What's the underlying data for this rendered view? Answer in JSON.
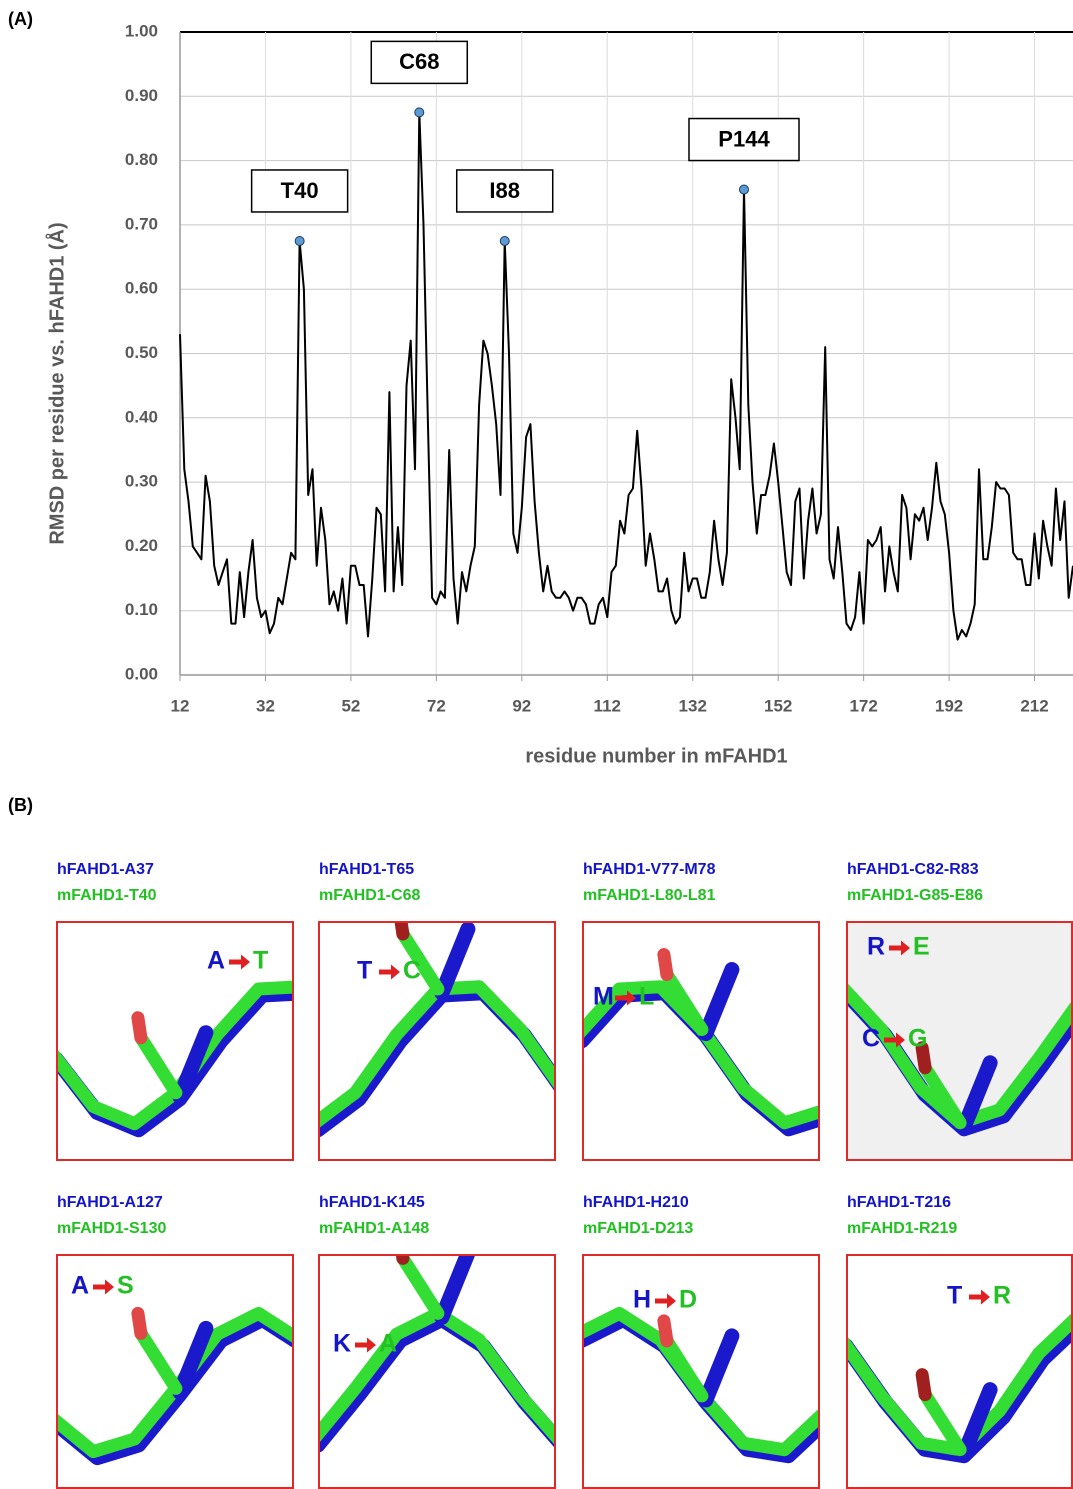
{
  "panel_labels": [
    "(A)",
    "(B)"
  ],
  "chart_data": {
    "type": "line",
    "x_label": "residue number in mFAHD1",
    "y_label": "RMSD per residue vs. hFAHD1 (Å)",
    "color": "#000000",
    "marker_color": "#5b9bd5",
    "grid": true,
    "xlim": [
      12,
      221
    ],
    "ylim": [
      0,
      1
    ],
    "xticks": [
      12,
      32,
      52,
      72,
      92,
      112,
      132,
      152,
      172,
      192,
      212
    ],
    "yticks": [
      {
        "value": 0,
        "label": "0.00"
      },
      {
        "value": 0.1,
        "label": "0.10"
      },
      {
        "value": 0.2,
        "label": "0.20"
      },
      {
        "value": 0.3,
        "label": "0.30"
      },
      {
        "value": 0.4,
        "label": "0.40"
      },
      {
        "value": 0.5,
        "label": "0.50"
      },
      {
        "value": 0.6,
        "label": "0.60"
      },
      {
        "value": 0.7,
        "label": "0.70"
      },
      {
        "value": 0.8,
        "label": "0.80"
      },
      {
        "value": 0.9,
        "label": "0.90"
      },
      {
        "value": 1,
        "label": "1.00"
      }
    ],
    "x": [
      12,
      13,
      14,
      15,
      16,
      17,
      18,
      19,
      20,
      21,
      22,
      23,
      24,
      25,
      26,
      27,
      28,
      29,
      30,
      31,
      32,
      33,
      34,
      35,
      36,
      37,
      38,
      39,
      40,
      41,
      42,
      43,
      44,
      45,
      46,
      47,
      48,
      49,
      50,
      51,
      52,
      53,
      54,
      55,
      56,
      57,
      58,
      59,
      60,
      61,
      62,
      63,
      64,
      65,
      66,
      67,
      68,
      69,
      70,
      71,
      72,
      73,
      74,
      75,
      76,
      77,
      78,
      79,
      80,
      81,
      82,
      83,
      84,
      85,
      86,
      87,
      88,
      89,
      90,
      91,
      92,
      93,
      94,
      95,
      96,
      97,
      98,
      99,
      100,
      101,
      102,
      103,
      104,
      105,
      106,
      107,
      108,
      109,
      110,
      111,
      112,
      113,
      114,
      115,
      116,
      117,
      118,
      119,
      120,
      121,
      122,
      123,
      124,
      125,
      126,
      127,
      128,
      129,
      130,
      131,
      132,
      133,
      134,
      135,
      136,
      137,
      138,
      139,
      140,
      141,
      142,
      143,
      144,
      145,
      146,
      147,
      148,
      149,
      150,
      151,
      152,
      153,
      154,
      155,
      156,
      157,
      158,
      159,
      160,
      161,
      162,
      163,
      164,
      165,
      166,
      167,
      168,
      169,
      170,
      171,
      172,
      173,
      174,
      175,
      176,
      177,
      178,
      179,
      180,
      181,
      182,
      183,
      184,
      185,
      186,
      187,
      188,
      189,
      190,
      191,
      192,
      193,
      194,
      195,
      196,
      197,
      198,
      199,
      200,
      201,
      202,
      203,
      204,
      205,
      206,
      207,
      208,
      209,
      210,
      211,
      212,
      213,
      214,
      215,
      216,
      217,
      218,
      219,
      220,
      221
    ],
    "values": [
      0.53,
      0.32,
      0.27,
      0.2,
      0.19,
      0.18,
      0.31,
      0.27,
      0.17,
      0.14,
      0.16,
      0.18,
      0.08,
      0.08,
      0.16,
      0.09,
      0.16,
      0.21,
      0.12,
      0.09,
      0.1,
      0.065,
      0.08,
      0.12,
      0.11,
      0.15,
      0.19,
      0.18,
      0.675,
      0.6,
      0.28,
      0.32,
      0.17,
      0.26,
      0.21,
      0.11,
      0.13,
      0.1,
      0.15,
      0.08,
      0.17,
      0.17,
      0.14,
      0.14,
      0.06,
      0.15,
      0.26,
      0.25,
      0.13,
      0.44,
      0.13,
      0.23,
      0.14,
      0.45,
      0.52,
      0.32,
      0.875,
      0.7,
      0.4,
      0.12,
      0.11,
      0.13,
      0.12,
      0.35,
      0.15,
      0.08,
      0.16,
      0.13,
      0.17,
      0.2,
      0.42,
      0.52,
      0.5,
      0.45,
      0.39,
      0.28,
      0.675,
      0.5,
      0.22,
      0.19,
      0.26,
      0.37,
      0.39,
      0.27,
      0.19,
      0.13,
      0.17,
      0.13,
      0.12,
      0.12,
      0.13,
      0.12,
      0.1,
      0.12,
      0.12,
      0.11,
      0.08,
      0.08,
      0.11,
      0.12,
      0.09,
      0.16,
      0.17,
      0.24,
      0.22,
      0.28,
      0.29,
      0.38,
      0.29,
      0.17,
      0.22,
      0.18,
      0.13,
      0.13,
      0.15,
      0.1,
      0.08,
      0.09,
      0.19,
      0.13,
      0.15,
      0.15,
      0.12,
      0.12,
      0.16,
      0.24,
      0.18,
      0.14,
      0.19,
      0.46,
      0.4,
      0.32,
      0.755,
      0.42,
      0.3,
      0.22,
      0.28,
      0.28,
      0.31,
      0.36,
      0.3,
      0.23,
      0.16,
      0.14,
      0.27,
      0.29,
      0.15,
      0.24,
      0.29,
      0.22,
      0.25,
      0.51,
      0.18,
      0.15,
      0.23,
      0.16,
      0.08,
      0.07,
      0.09,
      0.16,
      0.08,
      0.21,
      0.2,
      0.21,
      0.23,
      0.13,
      0.2,
      0.16,
      0.13,
      0.28,
      0.26,
      0.18,
      0.25,
      0.24,
      0.26,
      0.21,
      0.26,
      0.33,
      0.27,
      0.25,
      0.19,
      0.1,
      0.055,
      0.07,
      0.06,
      0.08,
      0.11,
      0.32,
      0.18,
      0.18,
      0.23,
      0.3,
      0.29,
      0.29,
      0.28,
      0.19,
      0.18,
      0.18,
      0.14,
      0.14,
      0.22,
      0.15,
      0.24,
      0.2,
      0.17,
      0.29,
      0.21,
      0.27,
      0.12,
      0.17
    ],
    "annotations": [
      {
        "text": "T40",
        "x": 40,
        "y": 0.675
      },
      {
        "text": "C68",
        "x": 68,
        "y": 0.875
      },
      {
        "text": "I88",
        "x": 88,
        "y": 0.675
      },
      {
        "text": "P144",
        "x": 144,
        "y": 0.755
      }
    ]
  },
  "structures": [
    {
      "human": "hFAHD1-A37",
      "mouse": "mFAHD1-T40",
      "mutations": [
        {
          "from": "A",
          "to": "T"
        }
      ]
    },
    {
      "human": "hFAHD1-T65",
      "mouse": "mFAHD1-C68",
      "mutations": [
        {
          "from": "T",
          "to": "C"
        }
      ]
    },
    {
      "human": "hFAHD1-V77-M78",
      "mouse": "mFAHD1-L80-L81",
      "mutations": [
        {
          "from": "M",
          "to": "L"
        }
      ]
    },
    {
      "human": "hFAHD1-C82-R83",
      "mouse": "mFAHD1-G85-E86",
      "mutations": [
        {
          "from": "R",
          "to": "E"
        },
        {
          "from": "C",
          "to": "G"
        }
      ]
    },
    {
      "human": "hFAHD1-A127",
      "mouse": "mFAHD1-S130",
      "mutations": [
        {
          "from": "A",
          "to": "S"
        }
      ]
    },
    {
      "human": "hFAHD1-K145",
      "mouse": "mFAHD1-A148",
      "mutations": [
        {
          "from": "K",
          "to": "A"
        }
      ]
    },
    {
      "human": "hFAHD1-H210",
      "mouse": "mFAHD1-D213",
      "mutations": [
        {
          "from": "H",
          "to": "D"
        }
      ]
    },
    {
      "human": "hFAHD1-T216",
      "mouse": "mFAHD1-R219",
      "mutations": [
        {
          "from": "T",
          "to": "R"
        }
      ]
    }
  ]
}
